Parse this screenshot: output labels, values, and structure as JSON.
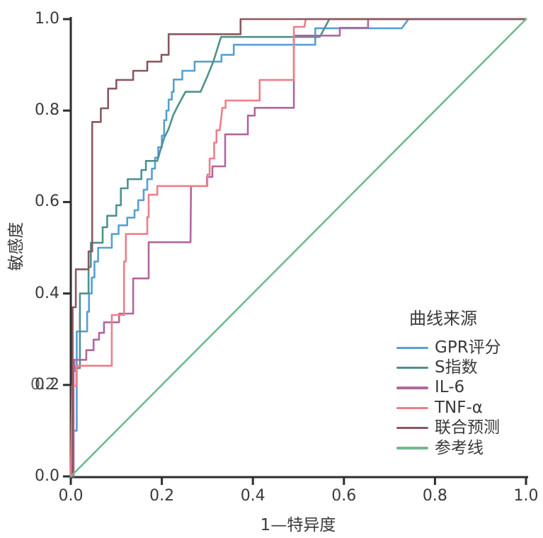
{
  "figure": {
    "background": "#ffffff",
    "axis_color": "#2d2d2d",
    "text_color": "#3a3a3a"
  },
  "chart_data": {
    "type": "line",
    "subtype": "roc-curve",
    "title": "",
    "xlabel": "1—特异度",
    "ylabel": "敏感度",
    "xlim": [
      0,
      1
    ],
    "ylim": [
      0,
      1
    ],
    "grid": false,
    "x_ticks": [
      "0.0",
      "0.2",
      "0.4",
      "0.6",
      "0.8",
      "1.0"
    ],
    "y_ticks": [
      "0.0",
      "0.2",
      "0.4",
      "0.6",
      "0.8",
      "1.0"
    ],
    "y_tick_double_printed": "0.2",
    "legend": {
      "title": "曲线来源",
      "position": "lower-right-inside"
    },
    "series": [
      {
        "name": "GPR评分",
        "color": "#56a0d3",
        "points": [
          [
            0,
            0
          ],
          [
            0.006,
            0
          ],
          [
            0.006,
            0.1
          ],
          [
            0.013,
            0.1
          ],
          [
            0.013,
            0.317
          ],
          [
            0.036,
            0.317
          ],
          [
            0.036,
            0.36
          ],
          [
            0.04,
            0.36
          ],
          [
            0.04,
            0.4
          ],
          [
            0.046,
            0.4
          ],
          [
            0.046,
            0.435
          ],
          [
            0.052,
            0.435
          ],
          [
            0.052,
            0.47
          ],
          [
            0.06,
            0.47
          ],
          [
            0.06,
            0.5
          ],
          [
            0.09,
            0.5
          ],
          [
            0.09,
            0.53
          ],
          [
            0.105,
            0.53
          ],
          [
            0.105,
            0.549
          ],
          [
            0.124,
            0.549
          ],
          [
            0.124,
            0.566
          ],
          [
            0.14,
            0.566
          ],
          [
            0.14,
            0.582
          ],
          [
            0.148,
            0.582
          ],
          [
            0.148,
            0.604
          ],
          [
            0.16,
            0.604
          ],
          [
            0.16,
            0.627
          ],
          [
            0.168,
            0.627
          ],
          [
            0.168,
            0.65
          ],
          [
            0.178,
            0.65
          ],
          [
            0.178,
            0.673
          ],
          [
            0.185,
            0.673
          ],
          [
            0.185,
            0.697
          ],
          [
            0.192,
            0.697
          ],
          [
            0.192,
            0.72
          ],
          [
            0.2,
            0.72
          ],
          [
            0.2,
            0.745
          ],
          [
            0.205,
            0.745
          ],
          [
            0.205,
            0.779
          ],
          [
            0.21,
            0.779
          ],
          [
            0.21,
            0.8
          ],
          [
            0.215,
            0.8
          ],
          [
            0.215,
            0.824
          ],
          [
            0.222,
            0.824
          ],
          [
            0.222,
            0.841
          ],
          [
            0.226,
            0.841
          ],
          [
            0.226,
            0.868
          ],
          [
            0.245,
            0.868
          ],
          [
            0.245,
            0.887
          ],
          [
            0.272,
            0.887
          ],
          [
            0.272,
            0.907
          ],
          [
            0.331,
            0.907
          ],
          [
            0.331,
            0.922
          ],
          [
            0.358,
            0.922
          ],
          [
            0.358,
            0.944
          ],
          [
            0.537,
            0.944
          ],
          [
            0.537,
            0.98
          ],
          [
            0.727,
            0.98
          ],
          [
            0.742,
            1.0
          ],
          [
            1,
            1
          ]
        ]
      },
      {
        "name": "S指数",
        "color": "#4f918c",
        "points": [
          [
            0,
            0
          ],
          [
            0.004,
            0
          ],
          [
            0.004,
            0.237
          ],
          [
            0.02,
            0.237
          ],
          [
            0.02,
            0.4
          ],
          [
            0.039,
            0.4
          ],
          [
            0.039,
            0.458
          ],
          [
            0.044,
            0.458
          ],
          [
            0.044,
            0.511
          ],
          [
            0.07,
            0.511
          ],
          [
            0.07,
            0.545
          ],
          [
            0.08,
            0.545
          ],
          [
            0.08,
            0.57
          ],
          [
            0.1,
            0.57
          ],
          [
            0.1,
            0.593
          ],
          [
            0.11,
            0.593
          ],
          [
            0.11,
            0.63
          ],
          [
            0.125,
            0.63
          ],
          [
            0.125,
            0.65
          ],
          [
            0.155,
            0.65
          ],
          [
            0.155,
            0.67
          ],
          [
            0.165,
            0.67
          ],
          [
            0.165,
            0.69
          ],
          [
            0.19,
            0.69
          ],
          [
            0.196,
            0.71
          ],
          [
            0.205,
            0.74
          ],
          [
            0.215,
            0.76
          ],
          [
            0.225,
            0.79
          ],
          [
            0.235,
            0.81
          ],
          [
            0.252,
            0.841
          ],
          [
            0.285,
            0.841
          ],
          [
            0.3,
            0.875
          ],
          [
            0.313,
            0.907
          ],
          [
            0.33,
            0.961
          ],
          [
            0.547,
            0.961
          ],
          [
            0.568,
            1.0
          ],
          [
            1,
            1
          ]
        ]
      },
      {
        "name": "IL-6",
        "color": "#b0679e",
        "points": [
          [
            0,
            0
          ],
          [
            0.006,
            0
          ],
          [
            0.006,
            0.23
          ],
          [
            0.008,
            0.23
          ],
          [
            0.008,
            0.255
          ],
          [
            0.034,
            0.255
          ],
          [
            0.034,
            0.276
          ],
          [
            0.05,
            0.276
          ],
          [
            0.05,
            0.299
          ],
          [
            0.062,
            0.299
          ],
          [
            0.062,
            0.314
          ],
          [
            0.073,
            0.314
          ],
          [
            0.073,
            0.337
          ],
          [
            0.106,
            0.337
          ],
          [
            0.106,
            0.356
          ],
          [
            0.137,
            0.356
          ],
          [
            0.137,
            0.433
          ],
          [
            0.171,
            0.433
          ],
          [
            0.171,
            0.512
          ],
          [
            0.263,
            0.512
          ],
          [
            0.264,
            0.635
          ],
          [
            0.299,
            0.635
          ],
          [
            0.299,
            0.655
          ],
          [
            0.311,
            0.655
          ],
          [
            0.311,
            0.678
          ],
          [
            0.339,
            0.678
          ],
          [
            0.339,
            0.748
          ],
          [
            0.389,
            0.748
          ],
          [
            0.389,
            0.789
          ],
          [
            0.404,
            0.789
          ],
          [
            0.404,
            0.806
          ],
          [
            0.49,
            0.806
          ],
          [
            0.49,
            0.964
          ],
          [
            0.591,
            0.964
          ],
          [
            0.591,
            0.981
          ],
          [
            0.653,
            0.981
          ],
          [
            0.653,
            1.0
          ],
          [
            1,
            1
          ]
        ]
      },
      {
        "name": "TNF-α",
        "color": "#ee7e89",
        "points": [
          [
            0,
            0
          ],
          [
            0.003,
            0.198
          ],
          [
            0.012,
            0.198
          ],
          [
            0.012,
            0.242
          ],
          [
            0.09,
            0.242
          ],
          [
            0.09,
            0.353
          ],
          [
            0.117,
            0.353
          ],
          [
            0.117,
            0.47
          ],
          [
            0.121,
            0.47
          ],
          [
            0.121,
            0.53
          ],
          [
            0.168,
            0.53
          ],
          [
            0.168,
            0.567
          ],
          [
            0.171,
            0.567
          ],
          [
            0.171,
            0.616
          ],
          [
            0.19,
            0.616
          ],
          [
            0.19,
            0.635
          ],
          [
            0.3,
            0.635
          ],
          [
            0.3,
            0.66
          ],
          [
            0.305,
            0.66
          ],
          [
            0.305,
            0.695
          ],
          [
            0.315,
            0.695
          ],
          [
            0.315,
            0.73
          ],
          [
            0.32,
            0.73
          ],
          [
            0.32,
            0.757
          ],
          [
            0.327,
            0.757
          ],
          [
            0.33,
            0.78
          ],
          [
            0.333,
            0.806
          ],
          [
            0.34,
            0.806
          ],
          [
            0.34,
            0.822
          ],
          [
            0.415,
            0.822
          ],
          [
            0.415,
            0.867
          ],
          [
            0.49,
            0.867
          ],
          [
            0.49,
            0.983
          ],
          [
            0.513,
            0.983
          ],
          [
            0.516,
            1.0
          ],
          [
            1,
            1
          ]
        ]
      },
      {
        "name": "联合预测",
        "color": "#8a575f",
        "points": [
          [
            0,
            0
          ],
          [
            0.004,
            0
          ],
          [
            0.004,
            0.37
          ],
          [
            0.011,
            0.37
          ],
          [
            0.011,
            0.453
          ],
          [
            0.039,
            0.453
          ],
          [
            0.039,
            0.492
          ],
          [
            0.047,
            0.492
          ],
          [
            0.047,
            0.775
          ],
          [
            0.066,
            0.775
          ],
          [
            0.066,
            0.805
          ],
          [
            0.082,
            0.805
          ],
          [
            0.082,
            0.848
          ],
          [
            0.1,
            0.848
          ],
          [
            0.1,
            0.867
          ],
          [
            0.137,
            0.867
          ],
          [
            0.137,
            0.887
          ],
          [
            0.168,
            0.887
          ],
          [
            0.168,
            0.907
          ],
          [
            0.199,
            0.907
          ],
          [
            0.199,
            0.922
          ],
          [
            0.215,
            0.922
          ],
          [
            0.215,
            0.967
          ],
          [
            0.373,
            0.967
          ],
          [
            0.373,
            1.0
          ],
          [
            1,
            1
          ]
        ]
      },
      {
        "name": "参考线",
        "color": "#72b98e",
        "points": [
          [
            0,
            0
          ],
          [
            1,
            1
          ]
        ]
      }
    ]
  }
}
